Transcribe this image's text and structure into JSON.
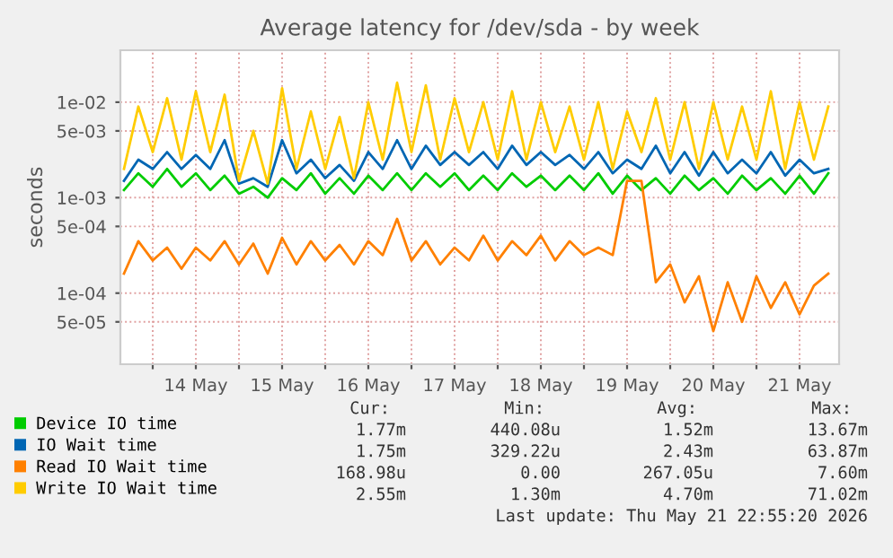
{
  "chart_data": {
    "type": "line",
    "title": "Average latency for /dev/sda - by week",
    "ylabel": "seconds",
    "log": "y",
    "grid": true,
    "legend": "bottom",
    "marker": "none",
    "line_style": "solid",
    "ylim": [
      1.8e-05,
      0.035
    ],
    "yticks": [
      {
        "value": 5e-05,
        "label": "5e-05"
      },
      {
        "value": 0.0001,
        "label": "1e-04"
      },
      {
        "value": 0.0005,
        "label": "5e-04"
      },
      {
        "value": 0.001,
        "label": "1e-03"
      },
      {
        "value": 0.005,
        "label": "5e-03"
      },
      {
        "value": 0.01,
        "label": "1e-02"
      }
    ],
    "xlim": [
      "2026-05-13T15:00",
      "2026-05-21T23:00"
    ],
    "xticks": [
      {
        "value": "2026-05-14T00:00",
        "label": null
      },
      {
        "value": "2026-05-14T12:00",
        "label": "14 May"
      },
      {
        "value": "2026-05-15T00:00",
        "label": null
      },
      {
        "value": "2026-05-15T12:00",
        "label": "15 May"
      },
      {
        "value": "2026-05-16T00:00",
        "label": null
      },
      {
        "value": "2026-05-16T12:00",
        "label": "16 May"
      },
      {
        "value": "2026-05-17T00:00",
        "label": null
      },
      {
        "value": "2026-05-17T12:00",
        "label": "17 May"
      },
      {
        "value": "2026-05-18T00:00",
        "label": null
      },
      {
        "value": "2026-05-18T12:00",
        "label": "18 May"
      },
      {
        "value": "2026-05-19T00:00",
        "label": null
      },
      {
        "value": "2026-05-19T12:00",
        "label": "19 May"
      },
      {
        "value": "2026-05-20T00:00",
        "label": null
      },
      {
        "value": "2026-05-20T12:00",
        "label": "20 May"
      },
      {
        "value": "2026-05-21T00:00",
        "label": null
      },
      {
        "value": "2026-05-21T12:00",
        "label": "21 May"
      }
    ],
    "x": [
      "2026-05-13T16:00",
      "2026-05-13T20:00",
      "2026-05-14T00:00",
      "2026-05-14T04:00",
      "2026-05-14T08:00",
      "2026-05-14T12:00",
      "2026-05-14T16:00",
      "2026-05-14T20:00",
      "2026-05-15T00:00",
      "2026-05-15T04:00",
      "2026-05-15T08:00",
      "2026-05-15T12:00",
      "2026-05-15T16:00",
      "2026-05-15T20:00",
      "2026-05-16T00:00",
      "2026-05-16T04:00",
      "2026-05-16T08:00",
      "2026-05-16T12:00",
      "2026-05-16T16:00",
      "2026-05-16T20:00",
      "2026-05-17T00:00",
      "2026-05-17T04:00",
      "2026-05-17T08:00",
      "2026-05-17T12:00",
      "2026-05-17T16:00",
      "2026-05-17T20:00",
      "2026-05-18T00:00",
      "2026-05-18T04:00",
      "2026-05-18T08:00",
      "2026-05-18T12:00",
      "2026-05-18T16:00",
      "2026-05-18T20:00",
      "2026-05-19T00:00",
      "2026-05-19T04:00",
      "2026-05-19T08:00",
      "2026-05-19T12:00",
      "2026-05-19T16:00",
      "2026-05-19T20:00",
      "2026-05-20T00:00",
      "2026-05-20T04:00",
      "2026-05-20T08:00",
      "2026-05-20T12:00",
      "2026-05-20T16:00",
      "2026-05-20T20:00",
      "2026-05-21T00:00",
      "2026-05-21T04:00",
      "2026-05-21T08:00",
      "2026-05-21T12:00",
      "2026-05-21T16:00",
      "2026-05-21T20:00"
    ],
    "series": [
      {
        "name": "Device IO time",
        "color": "#00cc00",
        "values": [
          0.0012,
          0.0018,
          0.0013,
          0.002,
          0.0013,
          0.0018,
          0.0012,
          0.0017,
          0.0011,
          0.0013,
          0.001,
          0.0016,
          0.0012,
          0.0018,
          0.0011,
          0.0016,
          0.0011,
          0.0017,
          0.0012,
          0.0018,
          0.0012,
          0.0018,
          0.0013,
          0.0018,
          0.0012,
          0.0017,
          0.0012,
          0.0018,
          0.0013,
          0.0017,
          0.0012,
          0.0017,
          0.0012,
          0.0018,
          0.0011,
          0.0017,
          0.0012,
          0.0016,
          0.0011,
          0.0017,
          0.0012,
          0.0016,
          0.0011,
          0.0017,
          0.0012,
          0.0016,
          0.0011,
          0.0017,
          0.0011,
          0.0018
        ]
      },
      {
        "name": "IO Wait time",
        "color": "#0066b3",
        "values": [
          0.0015,
          0.0025,
          0.002,
          0.003,
          0.002,
          0.0028,
          0.002,
          0.004,
          0.0014,
          0.0016,
          0.0013,
          0.004,
          0.0018,
          0.0025,
          0.0016,
          0.0022,
          0.0015,
          0.003,
          0.002,
          0.004,
          0.002,
          0.0035,
          0.0022,
          0.003,
          0.0022,
          0.003,
          0.002,
          0.0035,
          0.0022,
          0.003,
          0.0022,
          0.0028,
          0.002,
          0.003,
          0.0018,
          0.0025,
          0.002,
          0.0035,
          0.0018,
          0.003,
          0.0017,
          0.003,
          0.0018,
          0.0025,
          0.0018,
          0.003,
          0.0017,
          0.0025,
          0.0018,
          0.002
        ]
      },
      {
        "name": "Read IO Wait time",
        "color": "#ff8000",
        "values": [
          0.00016,
          0.00035,
          0.00022,
          0.0003,
          0.00018,
          0.0003,
          0.00022,
          0.00035,
          0.0002,
          0.00033,
          0.00016,
          0.00038,
          0.0002,
          0.00035,
          0.00022,
          0.00032,
          0.0002,
          0.00035,
          0.00025,
          0.0006,
          0.00022,
          0.00035,
          0.0002,
          0.0003,
          0.00022,
          0.0004,
          0.00022,
          0.00035,
          0.00025,
          0.0004,
          0.00022,
          0.00035,
          0.00025,
          0.0003,
          0.00025,
          0.0015,
          0.0015,
          0.00013,
          0.0002,
          8e-05,
          0.00015,
          4e-05,
          0.00013,
          5e-05,
          0.00015,
          7e-05,
          0.00013,
          6e-05,
          0.00012,
          0.00016
        ]
      },
      {
        "name": "Write IO Wait time",
        "color": "#ffcc00",
        "values": [
          0.002,
          0.009,
          0.003,
          0.011,
          0.0025,
          0.013,
          0.003,
          0.012,
          0.0015,
          0.005,
          0.0014,
          0.014,
          0.002,
          0.008,
          0.002,
          0.007,
          0.0016,
          0.01,
          0.0025,
          0.016,
          0.003,
          0.015,
          0.0025,
          0.011,
          0.003,
          0.01,
          0.0025,
          0.013,
          0.0025,
          0.01,
          0.003,
          0.009,
          0.0025,
          0.01,
          0.002,
          0.008,
          0.003,
          0.011,
          0.0025,
          0.01,
          0.002,
          0.01,
          0.0025,
          0.009,
          0.0025,
          0.013,
          0.002,
          0.01,
          0.0025,
          0.009
        ]
      }
    ],
    "annotations": [
      "Cur:",
      "Min:",
      "Avg:",
      "Max:",
      "1.77m",
      "440.08u",
      "1.52m",
      "13.67m",
      "1.75m",
      "329.22u",
      "2.43m",
      "63.87m",
      "168.98u",
      "0.00",
      "267.05u",
      "7.60m",
      "2.55m",
      "1.30m",
      "4.70m",
      "71.02m",
      "Last update: Thu May 21 22:55:20 2026"
    ]
  }
}
